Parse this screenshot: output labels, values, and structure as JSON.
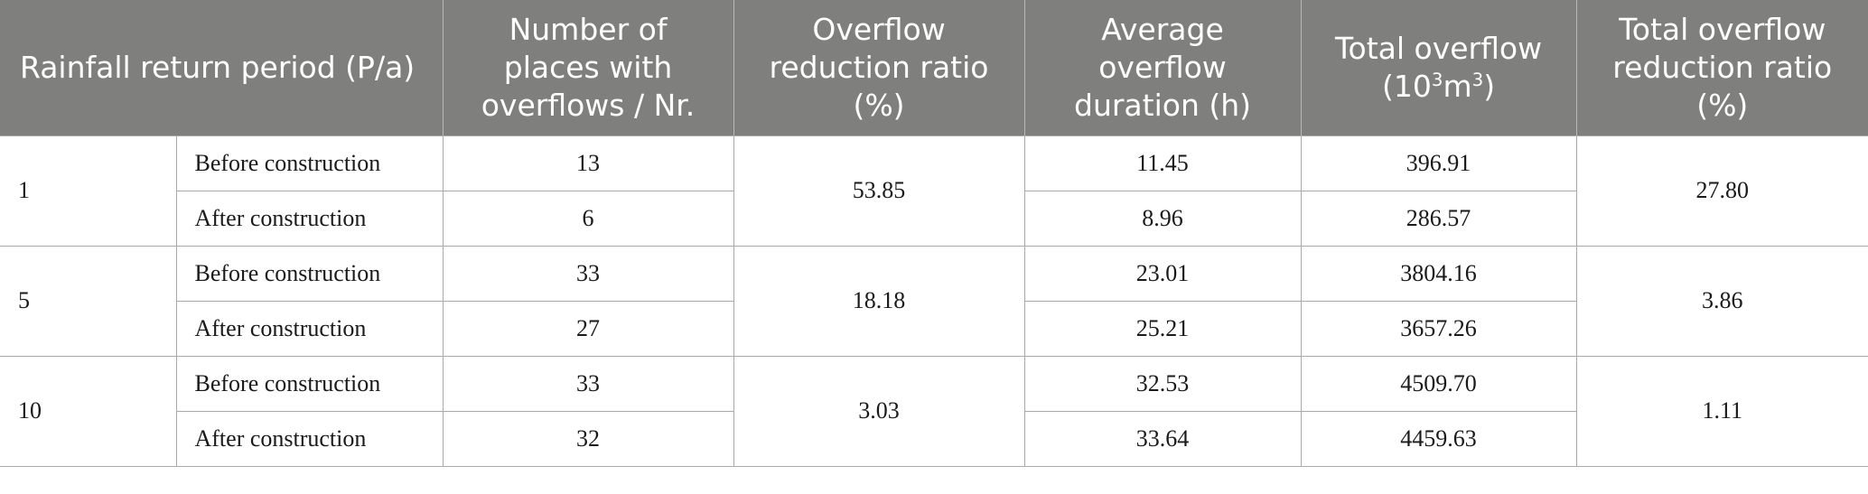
{
  "headers": {
    "period": "Rainfall return period (P/a)",
    "places": "Number of places with overflows / Nr.",
    "reduction": "Overflow reduction ratio (%)",
    "duration": "Average overflow duration (h)",
    "total_pre": "Total overflow (10",
    "total_sup": "3",
    "total_mid": "m",
    "total_sup2": "3",
    "total_post": ")",
    "total_reduction": "Total overflow reduction ratio (%)"
  },
  "groups": [
    {
      "period": "1",
      "reduction": "53.85",
      "total_reduction": "27.80",
      "rows": [
        {
          "stage": "Before construction",
          "places": "13",
          "duration": "11.45",
          "total": "396.91"
        },
        {
          "stage": "After construction",
          "places": "6",
          "duration": "8.96",
          "total": "286.57"
        }
      ]
    },
    {
      "period": "5",
      "reduction": "18.18",
      "total_reduction": "3.86",
      "rows": [
        {
          "stage": "Before construction",
          "places": "33",
          "duration": "23.01",
          "total": "3804.16"
        },
        {
          "stage": "After construction",
          "places": "27",
          "duration": "25.21",
          "total": "3657.26"
        }
      ]
    },
    {
      "period": "10",
      "reduction": "3.03",
      "total_reduction": "1.11",
      "rows": [
        {
          "stage": "Before construction",
          "places": "33",
          "duration": "32.53",
          "total": "4509.70"
        },
        {
          "stage": "After construction",
          "places": "32",
          "duration": "33.64",
          "total": "4459.63"
        }
      ]
    }
  ]
}
